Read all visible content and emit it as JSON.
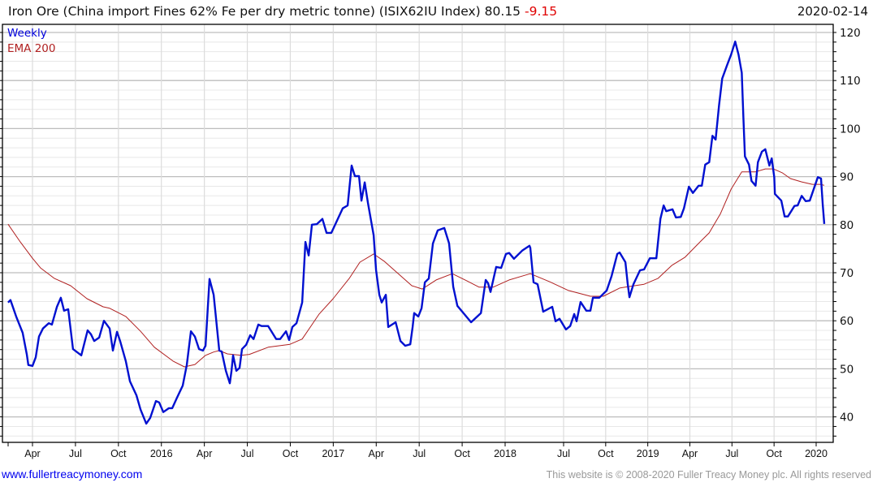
{
  "header": {
    "title": "Iron Ore (China import Fines 62% Fe per dry metric tonne) (ISIX62IU Index)",
    "last_value": "80.15",
    "change": "-9.15",
    "date": "2020-02-14"
  },
  "footer": {
    "site_link": "www.fullertreacymoney.com",
    "copyright": "This website is © 2008-2020 Fuller Treacy Money plc. All rights reserved"
  },
  "colors": {
    "weekly": "#0010d0",
    "ema": "#b02020",
    "change": "#e00000"
  },
  "chart_data": {
    "type": "line",
    "title": "Iron Ore (China import Fines 62% Fe per dry metric tonne) (ISIX62IU Index)",
    "xlabel": "",
    "ylabel": "",
    "ylim": [
      36,
      122
    ],
    "grid": true,
    "legend_position": "top-left",
    "y_ticks": [
      40,
      50,
      60,
      70,
      80,
      90,
      100,
      110,
      120
    ],
    "y_tick_labels": [
      "40",
      "50",
      "60",
      "70",
      "80",
      "90",
      "100",
      "110",
      "120"
    ],
    "x_ticks": [
      {
        "label": "Apr",
        "x": 2015.25
      },
      {
        "label": "Jul",
        "x": 2015.5
      },
      {
        "label": "Oct",
        "x": 2015.75
      },
      {
        "label": "2016",
        "x": 2016.0
      },
      {
        "label": "Apr",
        "x": 2016.25
      },
      {
        "label": "Jul",
        "x": 2016.5
      },
      {
        "label": "Oct",
        "x": 2016.75
      },
      {
        "label": "2017",
        "x": 2017.0
      },
      {
        "label": "Apr",
        "x": 2017.25
      },
      {
        "label": "Jul",
        "x": 2017.5
      },
      {
        "label": "Oct",
        "x": 2017.75
      },
      {
        "label": "2018",
        "x": 2018.0
      },
      {
        "label": "Jul",
        "x": 2018.5
      },
      {
        "label": "Oct",
        "x": 2018.75
      },
      {
        "label": "2019",
        "x": 2019.0
      },
      {
        "label": "Apr",
        "x": 2019.25
      },
      {
        "label": "Jul",
        "x": 2019.5
      },
      {
        "label": "Oct",
        "x": 2019.75
      },
      {
        "label": "2020",
        "x": 2020.0
      }
    ],
    "series": [
      {
        "name": "Weekly",
        "points": [
          [
            2015.108,
            63.8
          ],
          [
            2015.122,
            64.3
          ],
          [
            2015.155,
            60.9
          ],
          [
            2015.193,
            57.5
          ],
          [
            2015.217,
            53.0
          ],
          [
            2015.226,
            50.8
          ],
          [
            2015.25,
            50.6
          ],
          [
            2015.269,
            52.4
          ],
          [
            2015.288,
            56.7
          ],
          [
            2015.311,
            58.4
          ],
          [
            2015.345,
            59.5
          ],
          [
            2015.363,
            59.2
          ],
          [
            2015.392,
            62.9
          ],
          [
            2015.415,
            64.8
          ],
          [
            2015.434,
            62.1
          ],
          [
            2015.458,
            62.4
          ],
          [
            2015.486,
            54.1
          ],
          [
            2015.534,
            52.8
          ],
          [
            2015.571,
            58.0
          ],
          [
            2015.59,
            57.2
          ],
          [
            2015.609,
            55.8
          ],
          [
            2015.638,
            56.5
          ],
          [
            2015.666,
            60.0
          ],
          [
            2015.699,
            58.4
          ],
          [
            2015.718,
            53.8
          ],
          [
            2015.742,
            57.7
          ],
          [
            2015.76,
            55.8
          ],
          [
            2015.793,
            51.6
          ],
          [
            2015.817,
            47.4
          ],
          [
            2015.855,
            44.5
          ],
          [
            2015.879,
            41.5
          ],
          [
            2015.912,
            38.6
          ],
          [
            2015.935,
            39.8
          ],
          [
            2015.968,
            43.3
          ],
          [
            2015.987,
            43.0
          ],
          [
            2016.011,
            41.0
          ],
          [
            2016.044,
            41.8
          ],
          [
            2016.063,
            41.8
          ],
          [
            2016.091,
            44.0
          ],
          [
            2016.124,
            46.5
          ],
          [
            2016.148,
            50.8
          ],
          [
            2016.172,
            57.8
          ],
          [
            2016.195,
            56.7
          ],
          [
            2016.219,
            54.1
          ],
          [
            2016.242,
            53.8
          ],
          [
            2016.257,
            54.8
          ],
          [
            2016.28,
            68.7
          ],
          [
            2016.304,
            65.4
          ],
          [
            2016.337,
            53.8
          ],
          [
            2016.351,
            53.6
          ],
          [
            2016.375,
            49.6
          ],
          [
            2016.398,
            47.0
          ],
          [
            2016.408,
            49.6
          ],
          [
            2016.417,
            52.8
          ],
          [
            2016.436,
            49.6
          ],
          [
            2016.455,
            50.2
          ],
          [
            2016.469,
            54.1
          ],
          [
            2016.493,
            55.0
          ],
          [
            2016.517,
            57.0
          ],
          [
            2016.536,
            56.2
          ],
          [
            2016.564,
            59.2
          ],
          [
            2016.583,
            58.9
          ],
          [
            2016.621,
            58.9
          ],
          [
            2016.668,
            56.2
          ],
          [
            2016.691,
            56.2
          ],
          [
            2016.725,
            57.8
          ],
          [
            2016.743,
            56.0
          ],
          [
            2016.762,
            58.7
          ],
          [
            2016.786,
            59.5
          ],
          [
            2016.819,
            63.8
          ],
          [
            2016.838,
            76.4
          ],
          [
            2016.857,
            73.6
          ],
          [
            2016.876,
            80.0
          ],
          [
            2016.904,
            80.1
          ],
          [
            2016.937,
            81.2
          ],
          [
            2016.961,
            78.3
          ],
          [
            2016.989,
            78.3
          ],
          [
            2017.055,
            83.4
          ],
          [
            2017.084,
            84.0
          ],
          [
            2017.107,
            92.3
          ],
          [
            2017.126,
            90.1
          ],
          [
            2017.15,
            90.1
          ],
          [
            2017.164,
            85.0
          ],
          [
            2017.183,
            88.8
          ],
          [
            2017.202,
            84.5
          ],
          [
            2017.235,
            77.8
          ],
          [
            2017.249,
            70.5
          ],
          [
            2017.268,
            65.4
          ],
          [
            2017.282,
            63.8
          ],
          [
            2017.306,
            65.4
          ],
          [
            2017.32,
            58.7
          ],
          [
            2017.363,
            59.7
          ],
          [
            2017.391,
            55.8
          ],
          [
            2017.419,
            54.8
          ],
          [
            2017.448,
            55.1
          ],
          [
            2017.462,
            58.7
          ],
          [
            2017.471,
            61.6
          ],
          [
            2017.495,
            60.9
          ],
          [
            2017.514,
            62.6
          ],
          [
            2017.533,
            68.0
          ],
          [
            2017.556,
            68.8
          ],
          [
            2017.58,
            76.1
          ],
          [
            2017.608,
            78.8
          ],
          [
            2017.646,
            79.3
          ],
          [
            2017.674,
            76.1
          ],
          [
            2017.698,
            67.1
          ],
          [
            2017.722,
            63.1
          ],
          [
            2017.802,
            59.7
          ],
          [
            2017.859,
            61.6
          ],
          [
            2017.887,
            68.5
          ],
          [
            2017.901,
            67.8
          ],
          [
            2017.915,
            66.0
          ],
          [
            2017.948,
            71.2
          ],
          [
            2017.977,
            71.0
          ],
          [
            2018.007,
            73.9
          ],
          [
            2018.035,
            74.1
          ],
          [
            2018.076,
            72.9
          ],
          [
            2018.146,
            74.6
          ],
          [
            2018.208,
            75.6
          ],
          [
            2018.215,
            75.2
          ],
          [
            2018.243,
            68.0
          ],
          [
            2018.278,
            67.6
          ],
          [
            2018.326,
            61.9
          ],
          [
            2018.403,
            62.9
          ],
          [
            2018.431,
            59.9
          ],
          [
            2018.465,
            60.4
          ],
          [
            2018.514,
            58.2
          ],
          [
            2018.539,
            58.9
          ],
          [
            2018.563,
            61.4
          ],
          [
            2018.577,
            59.9
          ],
          [
            2018.601,
            63.9
          ],
          [
            2018.635,
            62.1
          ],
          [
            2018.659,
            62.1
          ],
          [
            2018.674,
            64.8
          ],
          [
            2018.712,
            64.8
          ],
          [
            2018.756,
            66.3
          ],
          [
            2018.785,
            69.3
          ],
          [
            2018.819,
            73.9
          ],
          [
            2018.833,
            74.2
          ],
          [
            2018.867,
            72.2
          ],
          [
            2018.881,
            67.6
          ],
          [
            2018.891,
            64.9
          ],
          [
            2018.915,
            67.6
          ],
          [
            2018.954,
            70.5
          ],
          [
            2018.978,
            70.7
          ],
          [
            2019.012,
            73.0
          ],
          [
            2019.051,
            73.0
          ],
          [
            2019.075,
            81.2
          ],
          [
            2019.094,
            84.0
          ],
          [
            2019.109,
            82.8
          ],
          [
            2019.147,
            83.2
          ],
          [
            2019.167,
            81.5
          ],
          [
            2019.196,
            81.6
          ],
          [
            2019.215,
            83.4
          ],
          [
            2019.244,
            87.9
          ],
          [
            2019.268,
            86.6
          ],
          [
            2019.302,
            88.1
          ],
          [
            2019.321,
            88.1
          ],
          [
            2019.341,
            92.5
          ],
          [
            2019.365,
            93.0
          ],
          [
            2019.384,
            98.5
          ],
          [
            2019.403,
            97.7
          ],
          [
            2019.423,
            104.8
          ],
          [
            2019.442,
            110.4
          ],
          [
            2019.471,
            113.2
          ],
          [
            2019.495,
            115.4
          ],
          [
            2019.519,
            118.1
          ],
          [
            2019.539,
            115.4
          ],
          [
            2019.558,
            111.6
          ],
          [
            2019.568,
            102.3
          ],
          [
            2019.577,
            94.2
          ],
          [
            2019.601,
            92.5
          ],
          [
            2019.616,
            89.1
          ],
          [
            2019.64,
            88.1
          ],
          [
            2019.654,
            93.0
          ],
          [
            2019.678,
            95.2
          ],
          [
            2019.698,
            95.7
          ],
          [
            2019.722,
            92.3
          ],
          [
            2019.736,
            93.8
          ],
          [
            2019.751,
            89.9
          ],
          [
            2019.755,
            86.4
          ],
          [
            2019.793,
            85.0
          ],
          [
            2019.813,
            81.7
          ],
          [
            2019.832,
            81.7
          ],
          [
            2019.871,
            83.9
          ],
          [
            2019.89,
            84.0
          ],
          [
            2019.914,
            86.0
          ],
          [
            2019.938,
            84.9
          ],
          [
            2019.962,
            85.0
          ],
          [
            2020.01,
            89.9
          ],
          [
            2020.029,
            89.6
          ],
          [
            2020.039,
            84.2
          ],
          [
            2020.048,
            80.15
          ]
        ]
      },
      {
        "name": "EMA 200",
        "points": [
          [
            2015.108,
            80.1
          ],
          [
            2015.179,
            76.4
          ],
          [
            2015.25,
            73.0
          ],
          [
            2015.297,
            71.0
          ],
          [
            2015.378,
            68.8
          ],
          [
            2015.472,
            67.3
          ],
          [
            2015.567,
            64.6
          ],
          [
            2015.661,
            62.9
          ],
          [
            2015.699,
            62.6
          ],
          [
            2015.793,
            60.9
          ],
          [
            2015.879,
            57.8
          ],
          [
            2015.959,
            54.5
          ],
          [
            2016.068,
            51.6
          ],
          [
            2016.134,
            50.4
          ],
          [
            2016.195,
            50.9
          ],
          [
            2016.257,
            52.8
          ],
          [
            2016.304,
            53.5
          ],
          [
            2016.337,
            53.8
          ],
          [
            2016.384,
            53.1
          ],
          [
            2016.465,
            52.8
          ],
          [
            2016.512,
            53.0
          ],
          [
            2016.621,
            54.5
          ],
          [
            2016.748,
            55.1
          ],
          [
            2016.819,
            56.2
          ],
          [
            2016.918,
            61.4
          ],
          [
            2016.999,
            64.6
          ],
          [
            2017.093,
            68.8
          ],
          [
            2017.155,
            72.2
          ],
          [
            2017.235,
            73.9
          ],
          [
            2017.296,
            72.4
          ],
          [
            2017.41,
            68.8
          ],
          [
            2017.457,
            67.3
          ],
          [
            2017.518,
            66.6
          ],
          [
            2017.599,
            68.5
          ],
          [
            2017.693,
            69.8
          ],
          [
            2017.778,
            68.3
          ],
          [
            2017.849,
            67.0
          ],
          [
            2017.93,
            67.0
          ],
          [
            2018.035,
            68.5
          ],
          [
            2018.215,
            69.8
          ],
          [
            2018.382,
            68.1
          ],
          [
            2018.529,
            66.3
          ],
          [
            2018.659,
            65.1
          ],
          [
            2018.736,
            65.1
          ],
          [
            2018.833,
            66.8
          ],
          [
            2018.881,
            67.1
          ],
          [
            2018.978,
            67.6
          ],
          [
            2019.06,
            68.8
          ],
          [
            2019.142,
            71.5
          ],
          [
            2019.22,
            73.2
          ],
          [
            2019.316,
            76.6
          ],
          [
            2019.365,
            78.3
          ],
          [
            2019.432,
            82.3
          ],
          [
            2019.495,
            87.4
          ],
          [
            2019.558,
            91.0
          ],
          [
            2019.64,
            91.0
          ],
          [
            2019.698,
            91.6
          ],
          [
            2019.746,
            91.6
          ],
          [
            2019.799,
            90.8
          ],
          [
            2019.847,
            89.6
          ],
          [
            2019.914,
            88.9
          ],
          [
            2019.977,
            88.4
          ],
          [
            2020.025,
            88.4
          ],
          [
            2020.048,
            88.2
          ]
        ]
      }
    ]
  }
}
